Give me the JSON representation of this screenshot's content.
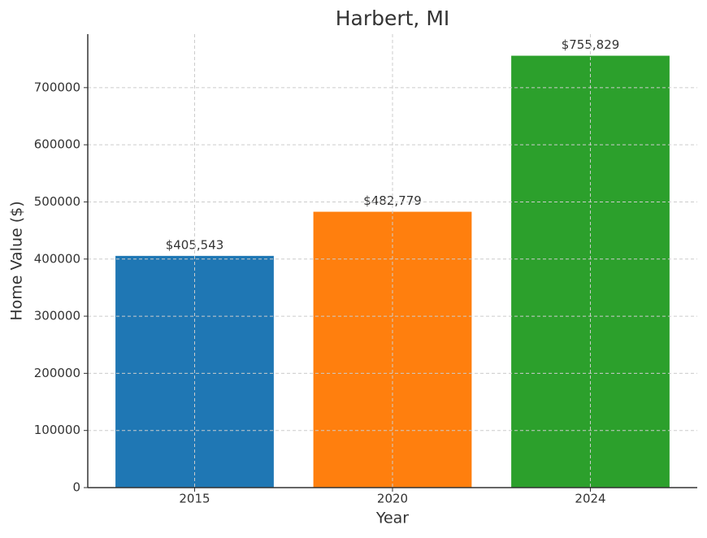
{
  "chart_data": {
    "type": "bar",
    "title": "Harbert, MI",
    "x_label": "Year",
    "y_label": "Home Value ($)",
    "categories": [
      "2015",
      "2020",
      "2024"
    ],
    "values": [
      405543,
      482779,
      755829
    ],
    "value_labels": [
      "$405,543",
      "$482,779",
      "$755,829"
    ],
    "colors": [
      "#1f77b4",
      "#ff7f0e",
      "#2ca02c"
    ],
    "ylim": [
      0,
      793620
    ],
    "yticks": [
      0,
      100000,
      200000,
      300000,
      400000,
      500000,
      600000,
      700000
    ],
    "grid": true
  }
}
